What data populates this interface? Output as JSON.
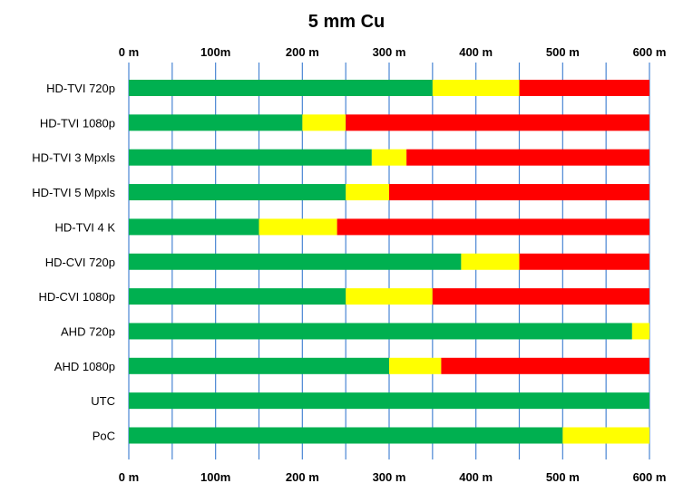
{
  "chart_data": {
    "type": "bar",
    "stacked": true,
    "orientation": "horizontal",
    "title": "5 mm Cu",
    "xlim": [
      0,
      600
    ],
    "x_ticks": [
      0,
      100,
      200,
      300,
      400,
      500,
      600
    ],
    "x_tick_labels": [
      "0 m",
      "100m",
      "200 m",
      "300 m",
      "400 m",
      "500 m",
      "600 m"
    ],
    "x_tick_positions": [
      "top",
      "bottom"
    ],
    "minor_gridlines": [
      50,
      150,
      250,
      350,
      450,
      550
    ],
    "grid": true,
    "legend": "none",
    "categories": [
      "HD-TVI 720p",
      "HD-TVI 1080p",
      "HD-TVI 3 Mpxls",
      "HD-TVI 5 Mpxls",
      "HD-TVI 4 K",
      "HD-CVI 720p",
      "HD-CVI 1080p",
      "AHD 720p",
      "AHD 1080p",
      "UTC",
      "PoC"
    ],
    "series": [
      {
        "color": "#00b050",
        "values": [
          350,
          200,
          280,
          250,
          150,
          383,
          250,
          580,
          300,
          600,
          500
        ]
      },
      {
        "color": "#ffff00",
        "values": [
          100,
          50,
          40,
          50,
          90,
          67,
          100,
          20,
          60,
          0,
          100
        ]
      },
      {
        "color": "#ff0000",
        "values": [
          150,
          350,
          280,
          300,
          360,
          150,
          250,
          0,
          240,
          0,
          0
        ]
      }
    ]
  }
}
